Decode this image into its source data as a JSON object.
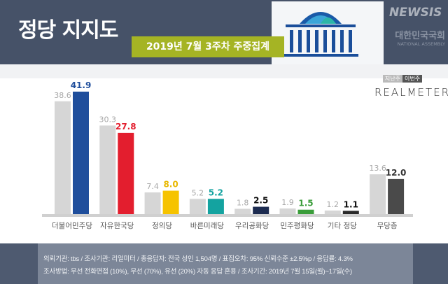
{
  "header": {
    "title": "정당 지지도",
    "subtitle": "2019년 7월 3주차 주중집계",
    "assembly_kr": "대한민국국회",
    "assembly_en": "NATIONAL ASSEMBLY"
  },
  "legend": {
    "prev": "지난주",
    "curr": "이번주",
    "source": "REALMETER"
  },
  "chart_data": {
    "type": "bar",
    "categories": [
      "더불어민주당",
      "자유한국당",
      "정의당",
      "바른미래당",
      "우리공화당",
      "민주평화당",
      "기타 정당",
      "무당층"
    ],
    "series": [
      {
        "name": "지난주",
        "values": [
          38.6,
          30.3,
          7.4,
          5.2,
          1.8,
          1.9,
          1.2,
          13.6
        ]
      },
      {
        "name": "이번주",
        "values": [
          41.9,
          27.8,
          8.0,
          5.2,
          2.5,
          1.5,
          1.1,
          12.0
        ]
      }
    ],
    "colors": [
      "#1f4e9c",
      "#e31e2e",
      "#f6c300",
      "#14a3a0",
      "#1c2b50",
      "#3a9d3a",
      "#2a2a2a",
      "#4a4a4a"
    ],
    "prev_color": "#d6d6d6",
    "ylim": [
      0,
      45
    ]
  },
  "footer": {
    "line1": "의뢰기관:  tbs  /  조사기관:  리얼미터   /  총응답자:  전국 성인 1,504명  /  표집오차:  95% 신뢰수준 ±2.5%p  /  응답률: 4.3%",
    "line2": "조사방법:  무선 전화면접 (10%), 무선 (70%), 유선 (20%)  자동 응답 혼용  /  조사기간:  2019년 7월 15일(월)~17일(수)"
  },
  "watermark": "NEWSIS"
}
